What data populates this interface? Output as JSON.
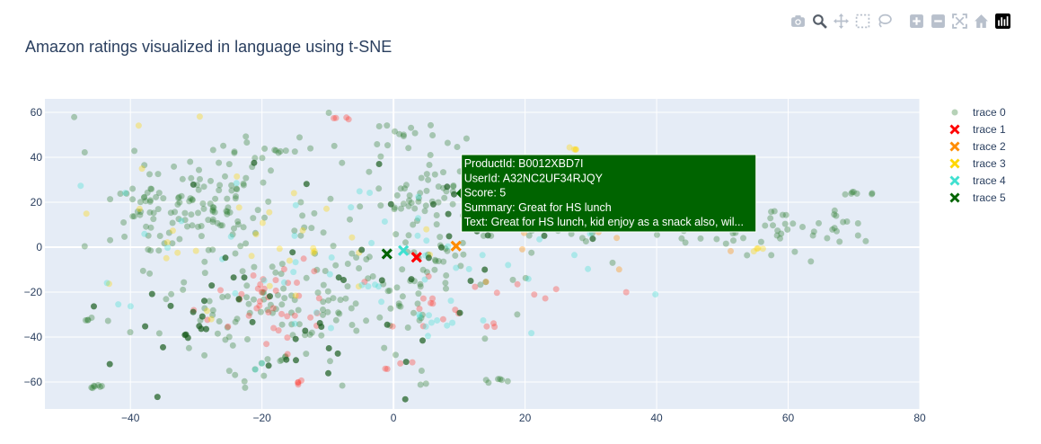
{
  "toolbar": {
    "buttons": [
      {
        "name": "camera-icon",
        "label": "Download plot as a png"
      },
      {
        "name": "zoom-icon",
        "label": "Zoom"
      },
      {
        "name": "pan-icon",
        "label": "Pan"
      },
      {
        "name": "box-select-icon",
        "label": "Box Select"
      },
      {
        "name": "lasso-select-icon",
        "label": "Lasso Select"
      },
      {
        "name": "zoom-in-icon",
        "label": "Zoom in"
      },
      {
        "name": "zoom-out-icon",
        "label": "Zoom out"
      },
      {
        "name": "autoscale-icon",
        "label": "Autoscale"
      },
      {
        "name": "reset-axes-icon",
        "label": "Reset axes"
      },
      {
        "name": "plotly-logo-icon",
        "label": "Produced with Plotly"
      }
    ]
  },
  "chart_data": {
    "type": "scatter",
    "title": "Amazon ratings visualized in language using t-SNE",
    "xlabel": "",
    "ylabel": "",
    "xlim": [
      -53,
      80
    ],
    "ylim": [
      -72,
      66
    ],
    "x_ticks": [
      -40,
      -20,
      0,
      20,
      40,
      60,
      80
    ],
    "y_ticks": [
      -60,
      -40,
      -20,
      0,
      20,
      40,
      60
    ],
    "x_tick_labels": [
      "−40",
      "−20",
      "0",
      "20",
      "40",
      "60",
      "80"
    ],
    "y_tick_labels": [
      "−60",
      "−40",
      "−20",
      "0",
      "20",
      "40",
      "60"
    ],
    "grid": true,
    "legend_position": "right",
    "series": [
      {
        "name": "trace 0",
        "marker": "circle",
        "color": "#2e7d32",
        "opacity": 0.35,
        "size": 7,
        "clusters": [
          {
            "cx": -30,
            "cy": 20,
            "sx": 9,
            "sy": 13,
            "n": 150
          },
          {
            "cx": -15,
            "cy": -28,
            "sx": 11,
            "sy": 14,
            "n": 130
          },
          {
            "cx": 5,
            "cy": 10,
            "sx": 8,
            "sy": 22,
            "n": 110
          },
          {
            "cx": 20,
            "cy": 18,
            "sx": 11,
            "sy": 10,
            "n": 70
          },
          {
            "cx": 45,
            "cy": 8,
            "sx": 12,
            "sy": 7,
            "n": 50
          },
          {
            "cx": 62,
            "cy": 8,
            "sx": 7,
            "sy": 6,
            "n": 25
          },
          {
            "cx": -45,
            "cy": -62,
            "sx": 1.2,
            "sy": 0.5,
            "n": 7
          },
          {
            "cx": -46,
            "cy": -32,
            "sx": 1.2,
            "sy": 0.5,
            "n": 5
          },
          {
            "cx": 16,
            "cy": -59,
            "sx": 1.2,
            "sy": 0.5,
            "n": 6
          },
          {
            "cx": 70,
            "cy": 24,
            "sx": 1.2,
            "sy": 0.5,
            "n": 7
          },
          {
            "cx": -17,
            "cy": 43,
            "sx": 1.2,
            "sy": 0.5,
            "n": 6
          },
          {
            "cx": 3,
            "cy": 50,
            "sx": 1,
            "sy": 0.5,
            "n": 4
          }
        ]
      },
      {
        "name": "trace 1",
        "marker": "circle",
        "color": "#ff3b30",
        "opacity": 0.35,
        "size": 7,
        "clusters": [
          {
            "cx": -18,
            "cy": -25,
            "sx": 5,
            "sy": 10,
            "n": 40
          },
          {
            "cx": 10,
            "cy": -30,
            "sx": 5,
            "sy": 6,
            "n": 15
          },
          {
            "cx": -8,
            "cy": 57,
            "sx": 0.8,
            "sy": 0.5,
            "n": 4
          },
          {
            "cx": -15,
            "cy": -60,
            "sx": 0.8,
            "sy": 0.5,
            "n": 4
          },
          {
            "cx": -1,
            "cy": -54,
            "sx": 0.6,
            "sy": 0.4,
            "n": 2
          },
          {
            "cx": 2,
            "cy": -51,
            "sx": 0.6,
            "sy": 0.4,
            "n": 2
          },
          {
            "cx": 25,
            "cy": -20,
            "sx": 4,
            "sy": 2,
            "n": 6
          }
        ]
      },
      {
        "name": "trace 2",
        "marker": "circle",
        "color": "#ff8c00",
        "opacity": 0.35,
        "size": 7,
        "clusters": [
          {
            "cx": 30,
            "cy": 8,
            "sx": 15,
            "sy": 10,
            "n": 10
          }
        ]
      },
      {
        "name": "trace 3",
        "marker": "circle",
        "color": "#ffd700",
        "opacity": 0.35,
        "size": 7,
        "clusters": [
          {
            "cx": -25,
            "cy": 10,
            "sx": 15,
            "sy": 20,
            "n": 35
          },
          {
            "cx": 28,
            "cy": 44,
            "sx": 0.8,
            "sy": 0.5,
            "n": 4
          },
          {
            "cx": 55,
            "cy": -1,
            "sx": 0.8,
            "sy": 0.4,
            "n": 4
          }
        ]
      },
      {
        "name": "trace 4",
        "marker": "circle",
        "color": "#40e0d0",
        "opacity": 0.35,
        "size": 7,
        "clusters": [
          {
            "cx": -10,
            "cy": -10,
            "sx": 20,
            "sy": 22,
            "n": 60
          },
          {
            "cx": 4,
            "cy": -32,
            "sx": 3,
            "sy": 2,
            "n": 8
          }
        ]
      },
      {
        "name": "trace 5",
        "marker": "circle",
        "color": "#1b5e20",
        "opacity": 0.7,
        "size": 7,
        "clusters": [
          {
            "cx": -20,
            "cy": -30,
            "sx": 14,
            "sy": 14,
            "n": 45
          },
          {
            "cx": 10,
            "cy": 10,
            "sx": 18,
            "sy": 18,
            "n": 25
          }
        ]
      }
    ],
    "highlighted_points": [
      {
        "series": "trace 1",
        "color": "#ff0000",
        "x": 3.5,
        "y": -4.5
      },
      {
        "series": "trace 2",
        "color": "#ff8c00",
        "x": 9.5,
        "y": 0.5
      },
      {
        "series": "trace 4",
        "color": "#40e0d0",
        "x": 1.5,
        "y": -1.5
      },
      {
        "series": "trace 5",
        "color": "#006400",
        "x": -1,
        "y": -3
      }
    ],
    "legend": [
      {
        "name": "trace 0",
        "symbol": "circle",
        "color": "#2e7d32",
        "opacity": 0.35
      },
      {
        "name": "trace 1",
        "symbol": "x",
        "color": "#ff0000",
        "opacity": 1
      },
      {
        "name": "trace 2",
        "symbol": "x",
        "color": "#ff8c00",
        "opacity": 1
      },
      {
        "name": "trace 3",
        "symbol": "x",
        "color": "#ffd700",
        "opacity": 1
      },
      {
        "name": "trace 4",
        "symbol": "x",
        "color": "#40e0d0",
        "opacity": 1
      },
      {
        "name": "trace 5",
        "symbol": "x",
        "color": "#006400",
        "opacity": 1
      }
    ],
    "hover": {
      "anchor_x": 9.5,
      "anchor_y": 24,
      "color": "#006400",
      "lines": [
        "ProductId: B0012XBD7I",
        "UserId: A32NC2UF34RJQY",
        "Score: 5",
        "Summary: Great for HS lunch",
        "Text: Great for HS lunch, kid enjoy as a snack also, wil..."
      ]
    }
  }
}
